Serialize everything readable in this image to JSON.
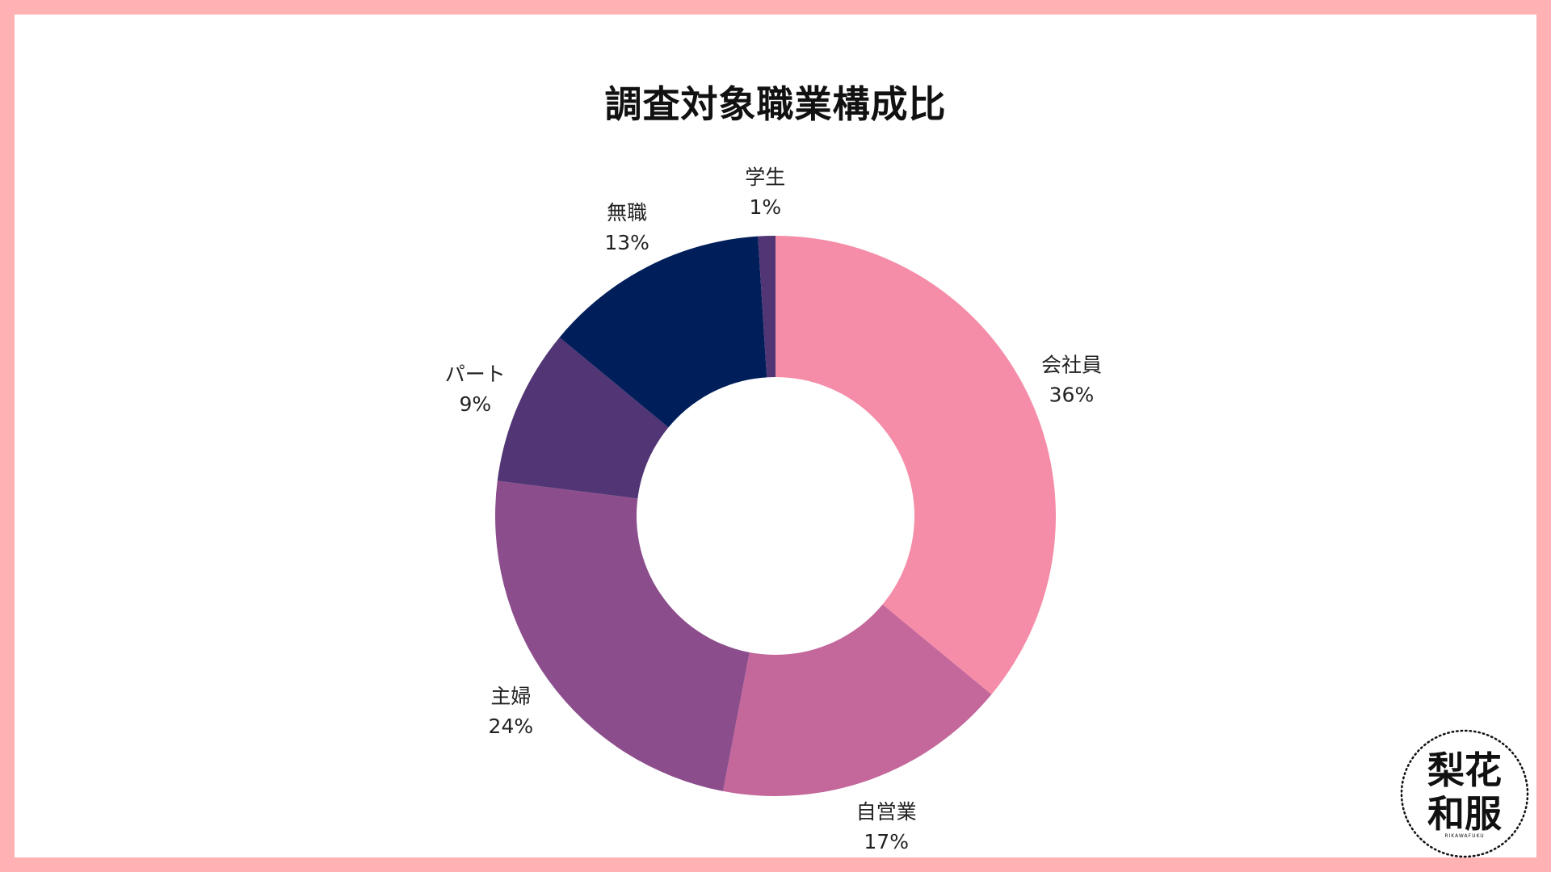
{
  "chart_data": {
    "type": "pie",
    "title": "調査対象職業構成比",
    "categories": [
      "会社員",
      "自営業",
      "主婦",
      "パート",
      "無職",
      "学生"
    ],
    "values": [
      36,
      17,
      24,
      9,
      13,
      1
    ],
    "value_labels": [
      "36%",
      "17%",
      "24%",
      "9%",
      "13%",
      "1%"
    ],
    "colors": [
      "#f58ca8",
      "#c4679b",
      "#8c4d8c",
      "#513574",
      "#001f5a",
      "#513574"
    ],
    "donut": true,
    "legend": "none"
  },
  "logo": {
    "text_top": "梨花",
    "text_bottom": "和服",
    "small_text": "RIKAWAFUKU"
  }
}
